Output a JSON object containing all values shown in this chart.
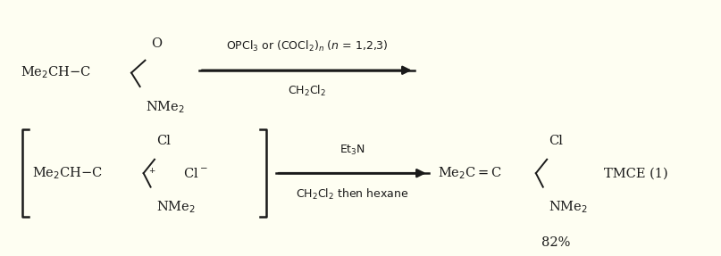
{
  "bg_color": "#fefef2",
  "text_color": "#1a1a1a",
  "figsize": [
    8.07,
    2.87
  ],
  "dpi": 100,
  "r1_above": "OPCl$_3$ or (COCl$_2$)$_n$ ($n$ = 1,2,3)",
  "r1_below": "CH$_2$Cl$_2$",
  "r2_above": "Et$_3$N",
  "r2_below": "CH$_2$Cl$_2$ then hexane",
  "tmce": "TMCE (1)",
  "yield_text": "82%"
}
